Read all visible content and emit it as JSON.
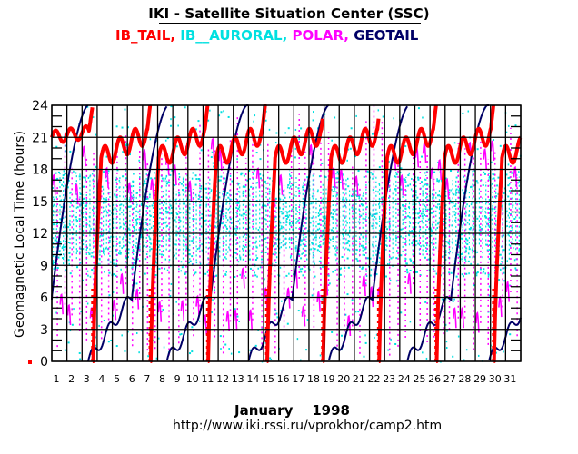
{
  "header": {
    "title": "IKI - Satellite Situation Center (SSC)",
    "legend": [
      {
        "label": "IB_TAIL,",
        "color": "#ff0000"
      },
      {
        "label": " IB__AURORAL,",
        "color": "#00e0e0"
      },
      {
        "label": " POLAR,",
        "color": "#ff00ff"
      },
      {
        "label": " GEOTAIL",
        "color": "#000066"
      }
    ]
  },
  "footer": {
    "month": "January    1998",
    "url": "http://www.iki.rssi.ru/vprokhor/camp2.htm"
  },
  "chart_data": {
    "type": "scatter",
    "title": "IKI - Satellite Situation Center (SSC)",
    "xlabel": "January 1998",
    "ylabel": "Geomagnetic  Local  Time  (hours)",
    "xlim": [
      1,
      32
    ],
    "ylim": [
      0,
      24
    ],
    "x_ticks": [
      "1",
      "2",
      "3",
      "4",
      "5",
      "6",
      "7",
      "8",
      "9",
      "10",
      "11",
      "12",
      "13",
      "14",
      "15",
      "16",
      "17",
      "18",
      "19",
      "20",
      "21",
      "22",
      "23",
      "24",
      "25",
      "26",
      "27",
      "28",
      "29",
      "30",
      "31"
    ],
    "y_ticks": [
      "0",
      "3",
      "6",
      "9",
      "12",
      "15",
      "18",
      "21",
      "24"
    ],
    "grid": true,
    "legend_position": "top",
    "series": [
      {
        "name": "IB_TAIL",
        "color": "#ff0000",
        "style": "thick-line",
        "description": "Wraps from 24h to 0h roughly every 3.8 days; rises steeply from 0 to ~18h, then oscillates between ~19h and ~22h before climbing to 24h",
        "wrap_days": [
          3.7,
          7.5,
          11.3,
          15.2,
          18.9,
          22.6,
          26.4,
          30.2
        ],
        "start_value_day1": 21
      },
      {
        "name": "IB_AURORAL",
        "color": "#00e0e0",
        "style": "dots",
        "description": "Dense scattered points mostly between ~8h and ~18h with sparse points across full range",
        "dense_band": [
          8,
          18
        ]
      },
      {
        "name": "POLAR",
        "color": "#ff00ff",
        "style": "dotted-line",
        "description": "Orbital sawtooth passes roughly twice per day, arcs near 4-8h and 16-20h with vertical dotted transitions",
        "low_band": [
          3,
          8
        ],
        "high_band": [
          15,
          20
        ]
      },
      {
        "name": "GEOTAIL",
        "color": "#000066",
        "style": "line",
        "description": "Sawtooth with ~5.3-day period; slow rise from 0 to ~6h, then steep rise to 24h",
        "zero_days": [
          3.4,
          8.6,
          14.0,
          19.3,
          24.5,
          29.9
        ],
        "start_value_day1": 8.5
      }
    ]
  }
}
